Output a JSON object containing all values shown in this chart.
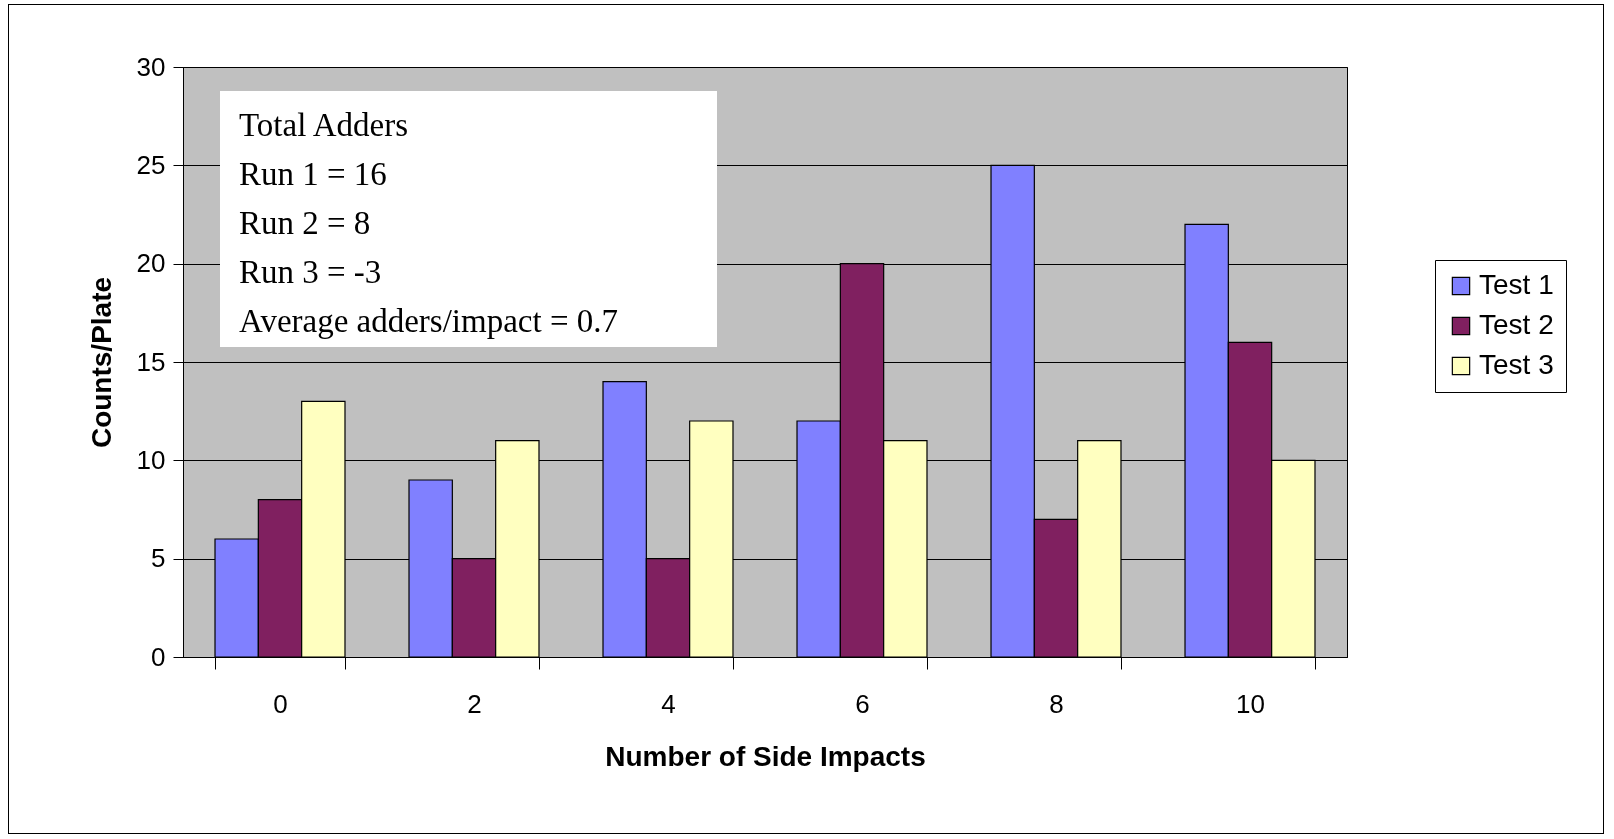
{
  "chart_data": {
    "type": "bar",
    "xlabel": "Number of Side Impacts",
    "ylabel": "Counts/Plate",
    "categories": [
      "0",
      "2",
      "4",
      "6",
      "8",
      "10"
    ],
    "series": [
      {
        "name": "Test 1",
        "color": "#8080ff",
        "values": [
          6,
          9,
          14,
          12,
          25,
          22
        ]
      },
      {
        "name": "Test 2",
        "color": "#802060",
        "values": [
          8,
          5,
          5,
          20,
          7,
          16
        ]
      },
      {
        "name": "Test 3",
        "color": "#ffffc0",
        "values": [
          13,
          11,
          12,
          11,
          11,
          10
        ]
      }
    ],
    "ylim": [
      0,
      30
    ],
    "yticks": [
      0,
      5,
      10,
      15,
      20,
      25,
      30
    ],
    "grid": "y",
    "legend": "right",
    "annotations": [
      "Total Adders",
      "Run 1 = 16",
      "Run 2 = 8",
      "Run 3 = -3",
      "Average adders/impact = 0.7"
    ]
  }
}
